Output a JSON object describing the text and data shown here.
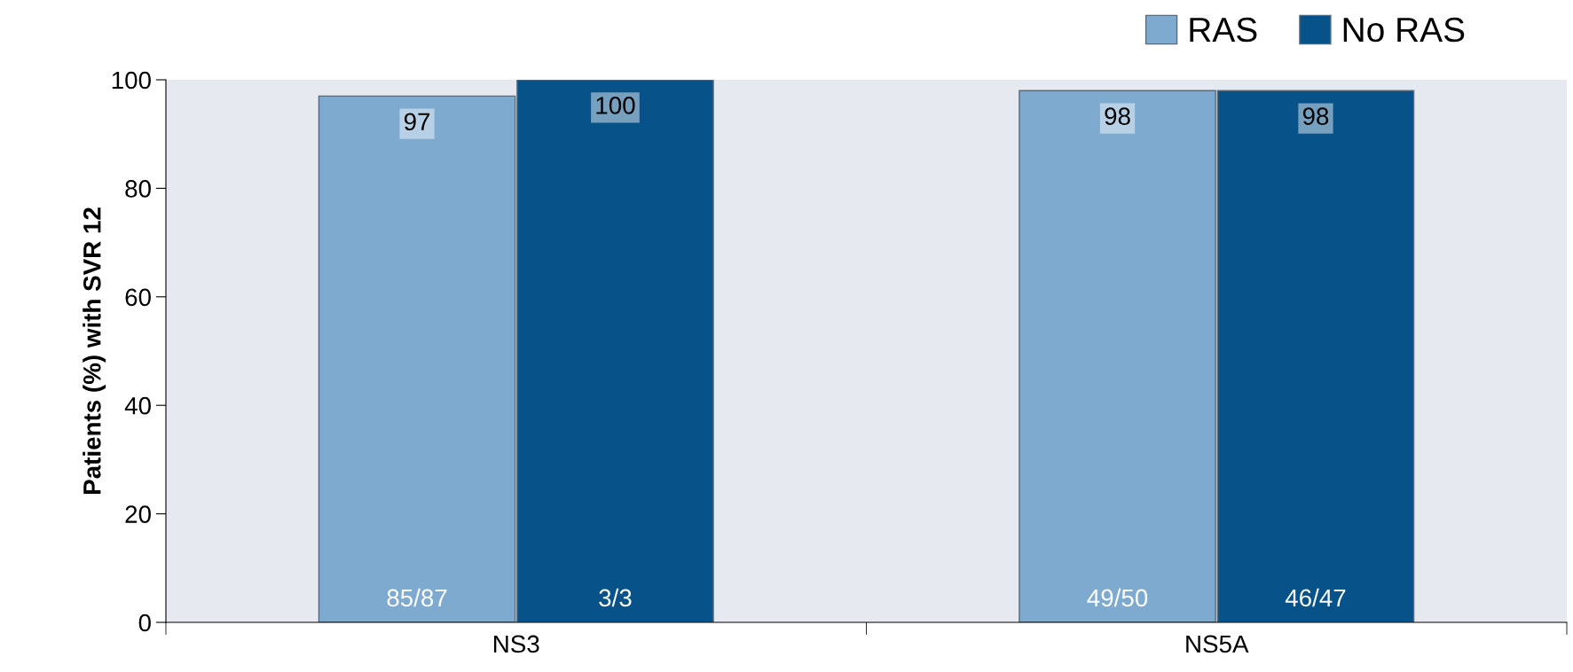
{
  "chart_data": {
    "type": "bar",
    "ylabel": "Patients (%) with SVR 12",
    "categories": [
      "NS3",
      "NS5A"
    ],
    "series": [
      {
        "name": "RAS",
        "color": "#7eaacf",
        "values": [
          97,
          98
        ]
      },
      {
        "name": "No RAS",
        "color": "#08528a",
        "values": [
          100,
          98
        ]
      }
    ],
    "annotations": [
      "85/87",
      "3/3",
      "49/50",
      "46/47"
    ],
    "ylim": [
      0,
      100
    ],
    "yticks": [
      0,
      20,
      40,
      60,
      80,
      100
    ],
    "data_labels": true,
    "legend": "top right",
    "grid": false
  }
}
